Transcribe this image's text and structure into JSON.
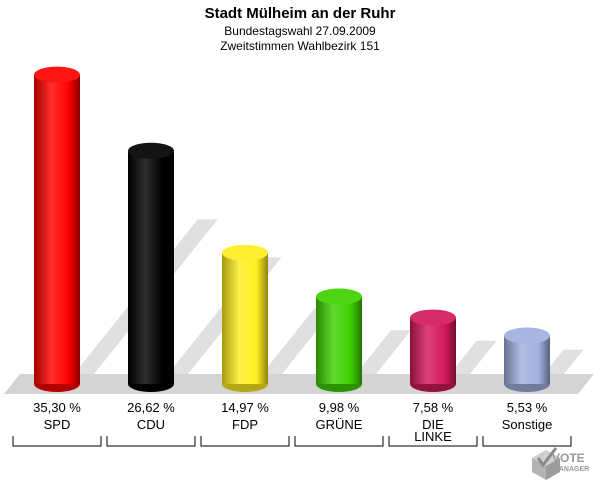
{
  "chart_data": {
    "type": "bar",
    "title": "Stadt Mülheim an der Ruhr",
    "subtitle_1": "Bundestagswahl 27.09.2009",
    "subtitle_2": "Zweitstimmen Wahlbezirk 151",
    "ylim": [
      0,
      38
    ],
    "value_unit": "%",
    "categories": [
      "SPD",
      "CDU",
      "FDP",
      "GRÜNE",
      "DIE LINKE",
      "Sonstige"
    ],
    "category_lines": [
      [
        "SPD"
      ],
      [
        "CDU"
      ],
      [
        "FDP"
      ],
      [
        "GRÜNE"
      ],
      [
        "DIE",
        "LINKE"
      ],
      [
        "Sonstige"
      ]
    ],
    "values": [
      35.3,
      26.62,
      14.97,
      9.98,
      7.58,
      5.53
    ],
    "value_labels": [
      "35,30 %",
      "26,62 %",
      "14,97 %",
      "9,98 %",
      "7,58 %",
      "5,53 %"
    ],
    "colors": [
      "#ff0000",
      "#000000",
      "#ffee1e",
      "#3ed100",
      "#d4195a",
      "#a3b0e0"
    ]
  },
  "logo": {
    "line1": "VOTE",
    "line2": "MANAGER"
  }
}
